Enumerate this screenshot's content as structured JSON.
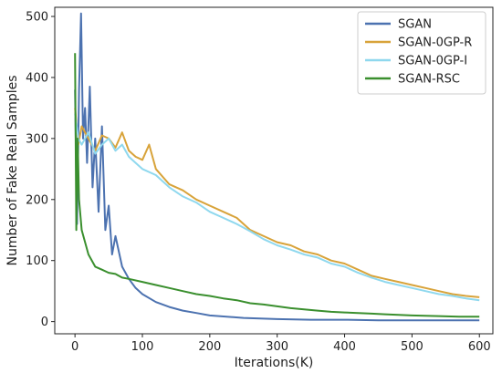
{
  "chart_data": {
    "type": "line",
    "title": "",
    "xlabel": "Iterations(K)",
    "ylabel": "Number of Fake Real Samples",
    "xlim": [
      -30,
      620
    ],
    "ylim": [
      -20,
      515
    ],
    "xticks": [
      0,
      100,
      200,
      300,
      400,
      500,
      600
    ],
    "yticks": [
      0,
      100,
      200,
      300,
      400,
      500
    ],
    "grid": false,
    "legend_position": "top-right",
    "series": [
      {
        "name": "SGAN",
        "color": "#4c72b0",
        "points": [
          [
            0,
            380
          ],
          [
            3,
            160
          ],
          [
            6,
            380
          ],
          [
            9,
            505
          ],
          [
            12,
            300
          ],
          [
            15,
            350
          ],
          [
            18,
            260
          ],
          [
            22,
            385
          ],
          [
            26,
            220
          ],
          [
            30,
            300
          ],
          [
            35,
            180
          ],
          [
            40,
            320
          ],
          [
            45,
            150
          ],
          [
            50,
            190
          ],
          [
            55,
            110
          ],
          [
            60,
            140
          ],
          [
            70,
            90
          ],
          [
            80,
            70
          ],
          [
            90,
            55
          ],
          [
            100,
            45
          ],
          [
            120,
            32
          ],
          [
            140,
            24
          ],
          [
            160,
            18
          ],
          [
            180,
            14
          ],
          [
            200,
            10
          ],
          [
            250,
            6
          ],
          [
            300,
            4
          ],
          [
            350,
            3
          ],
          [
            400,
            3
          ],
          [
            450,
            2
          ],
          [
            500,
            2
          ],
          [
            550,
            2
          ],
          [
            600,
            2
          ]
        ]
      },
      {
        "name": "SGAN-0GP-R",
        "color": "#d8a33a",
        "points": [
          [
            0,
            350
          ],
          [
            5,
            290
          ],
          [
            10,
            320
          ],
          [
            20,
            300
          ],
          [
            30,
            280
          ],
          [
            40,
            305
          ],
          [
            50,
            300
          ],
          [
            60,
            285
          ],
          [
            70,
            310
          ],
          [
            80,
            280
          ],
          [
            90,
            270
          ],
          [
            100,
            265
          ],
          [
            110,
            290
          ],
          [
            120,
            250
          ],
          [
            140,
            225
          ],
          [
            160,
            215
          ],
          [
            180,
            200
          ],
          [
            200,
            190
          ],
          [
            220,
            180
          ],
          [
            240,
            170
          ],
          [
            260,
            150
          ],
          [
            280,
            140
          ],
          [
            300,
            130
          ],
          [
            320,
            125
          ],
          [
            340,
            115
          ],
          [
            360,
            110
          ],
          [
            380,
            100
          ],
          [
            400,
            95
          ],
          [
            420,
            85
          ],
          [
            440,
            75
          ],
          [
            460,
            70
          ],
          [
            480,
            65
          ],
          [
            500,
            60
          ],
          [
            520,
            55
          ],
          [
            540,
            50
          ],
          [
            560,
            45
          ],
          [
            580,
            42
          ],
          [
            600,
            40
          ]
        ]
      },
      {
        "name": "SGAN-0GP-I",
        "color": "#8fd8ee",
        "points": [
          [
            0,
            340
          ],
          [
            5,
            300
          ],
          [
            10,
            290
          ],
          [
            20,
            310
          ],
          [
            30,
            275
          ],
          [
            40,
            290
          ],
          [
            50,
            300
          ],
          [
            60,
            280
          ],
          [
            70,
            290
          ],
          [
            80,
            270
          ],
          [
            90,
            260
          ],
          [
            100,
            250
          ],
          [
            120,
            240
          ],
          [
            140,
            220
          ],
          [
            160,
            205
          ],
          [
            180,
            195
          ],
          [
            200,
            180
          ],
          [
            220,
            170
          ],
          [
            240,
            160
          ],
          [
            260,
            148
          ],
          [
            280,
            135
          ],
          [
            300,
            125
          ],
          [
            320,
            118
          ],
          [
            340,
            110
          ],
          [
            360,
            105
          ],
          [
            380,
            95
          ],
          [
            400,
            90
          ],
          [
            420,
            80
          ],
          [
            440,
            72
          ],
          [
            460,
            65
          ],
          [
            480,
            60
          ],
          [
            500,
            55
          ],
          [
            520,
            50
          ],
          [
            540,
            45
          ],
          [
            560,
            42
          ],
          [
            580,
            38
          ],
          [
            600,
            35
          ]
        ]
      },
      {
        "name": "SGAN-RSC",
        "color": "#3a8f2e",
        "points": [
          [
            0,
            440
          ],
          [
            2,
            150
          ],
          [
            4,
            300
          ],
          [
            6,
            200
          ],
          [
            10,
            150
          ],
          [
            20,
            110
          ],
          [
            30,
            90
          ],
          [
            40,
            85
          ],
          [
            50,
            80
          ],
          [
            60,
            78
          ],
          [
            70,
            72
          ],
          [
            80,
            70
          ],
          [
            100,
            65
          ],
          [
            120,
            60
          ],
          [
            140,
            55
          ],
          [
            160,
            50
          ],
          [
            180,
            45
          ],
          [
            200,
            42
          ],
          [
            220,
            38
          ],
          [
            240,
            35
          ],
          [
            260,
            30
          ],
          [
            280,
            28
          ],
          [
            300,
            25
          ],
          [
            320,
            22
          ],
          [
            340,
            20
          ],
          [
            360,
            18
          ],
          [
            380,
            16
          ],
          [
            400,
            15
          ],
          [
            420,
            14
          ],
          [
            440,
            13
          ],
          [
            460,
            12
          ],
          [
            480,
            11
          ],
          [
            500,
            10
          ],
          [
            540,
            9
          ],
          [
            570,
            8
          ],
          [
            600,
            8
          ]
        ]
      }
    ]
  }
}
